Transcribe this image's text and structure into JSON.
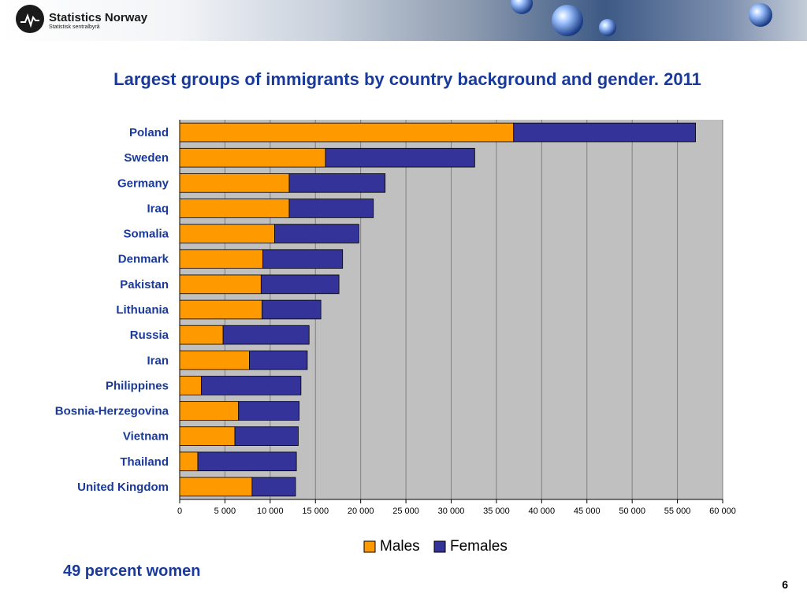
{
  "header": {
    "org_name": "Statistics Norway",
    "org_sub": "Statistisk sentralbyrå"
  },
  "slide": {
    "title": "Largest groups of immigrants by country background and gender. 2011",
    "footnote": "49 percent women",
    "page_number": "6"
  },
  "colors": {
    "title": "#1a3a9a",
    "males": "#ff9900",
    "females": "#333399",
    "plot_bg": "#c0c0c0"
  },
  "chart_data": {
    "type": "bar",
    "orientation": "horizontal",
    "stacked": true,
    "title": "",
    "xlabel": "",
    "ylabel": "",
    "xlim": [
      0,
      60000
    ],
    "x_ticks": [
      0,
      5000,
      10000,
      15000,
      20000,
      25000,
      30000,
      35000,
      40000,
      45000,
      50000,
      55000,
      60000
    ],
    "x_tick_labels": [
      "0",
      "5 000",
      "10 000",
      "15 000",
      "20 000",
      "25 000",
      "30 000",
      "35 000",
      "40 000",
      "45 000",
      "50 000",
      "55 000",
      "60 000"
    ],
    "grid": true,
    "legend_position": "bottom",
    "categories": [
      "Poland",
      "Sweden",
      "Germany",
      "Iraq",
      "Somalia",
      "Denmark",
      "Pakistan",
      "Lithuania",
      "Russia",
      "Iran",
      "Philippines",
      "Bosnia-Herzegovina",
      "Vietnam",
      "Thailand",
      "United Kingdom"
    ],
    "series": [
      {
        "name": "Males",
        "color": "#ff9900",
        "values": [
          36900,
          16100,
          12100,
          12100,
          10500,
          9200,
          9000,
          9100,
          4800,
          7700,
          2400,
          6500,
          6100,
          2000,
          8000
        ]
      },
      {
        "name": "Females",
        "color": "#333399",
        "values": [
          20100,
          16500,
          10600,
          9300,
          9300,
          8800,
          8600,
          6500,
          9500,
          6400,
          11000,
          6700,
          7000,
          10900,
          4800
        ]
      }
    ]
  }
}
